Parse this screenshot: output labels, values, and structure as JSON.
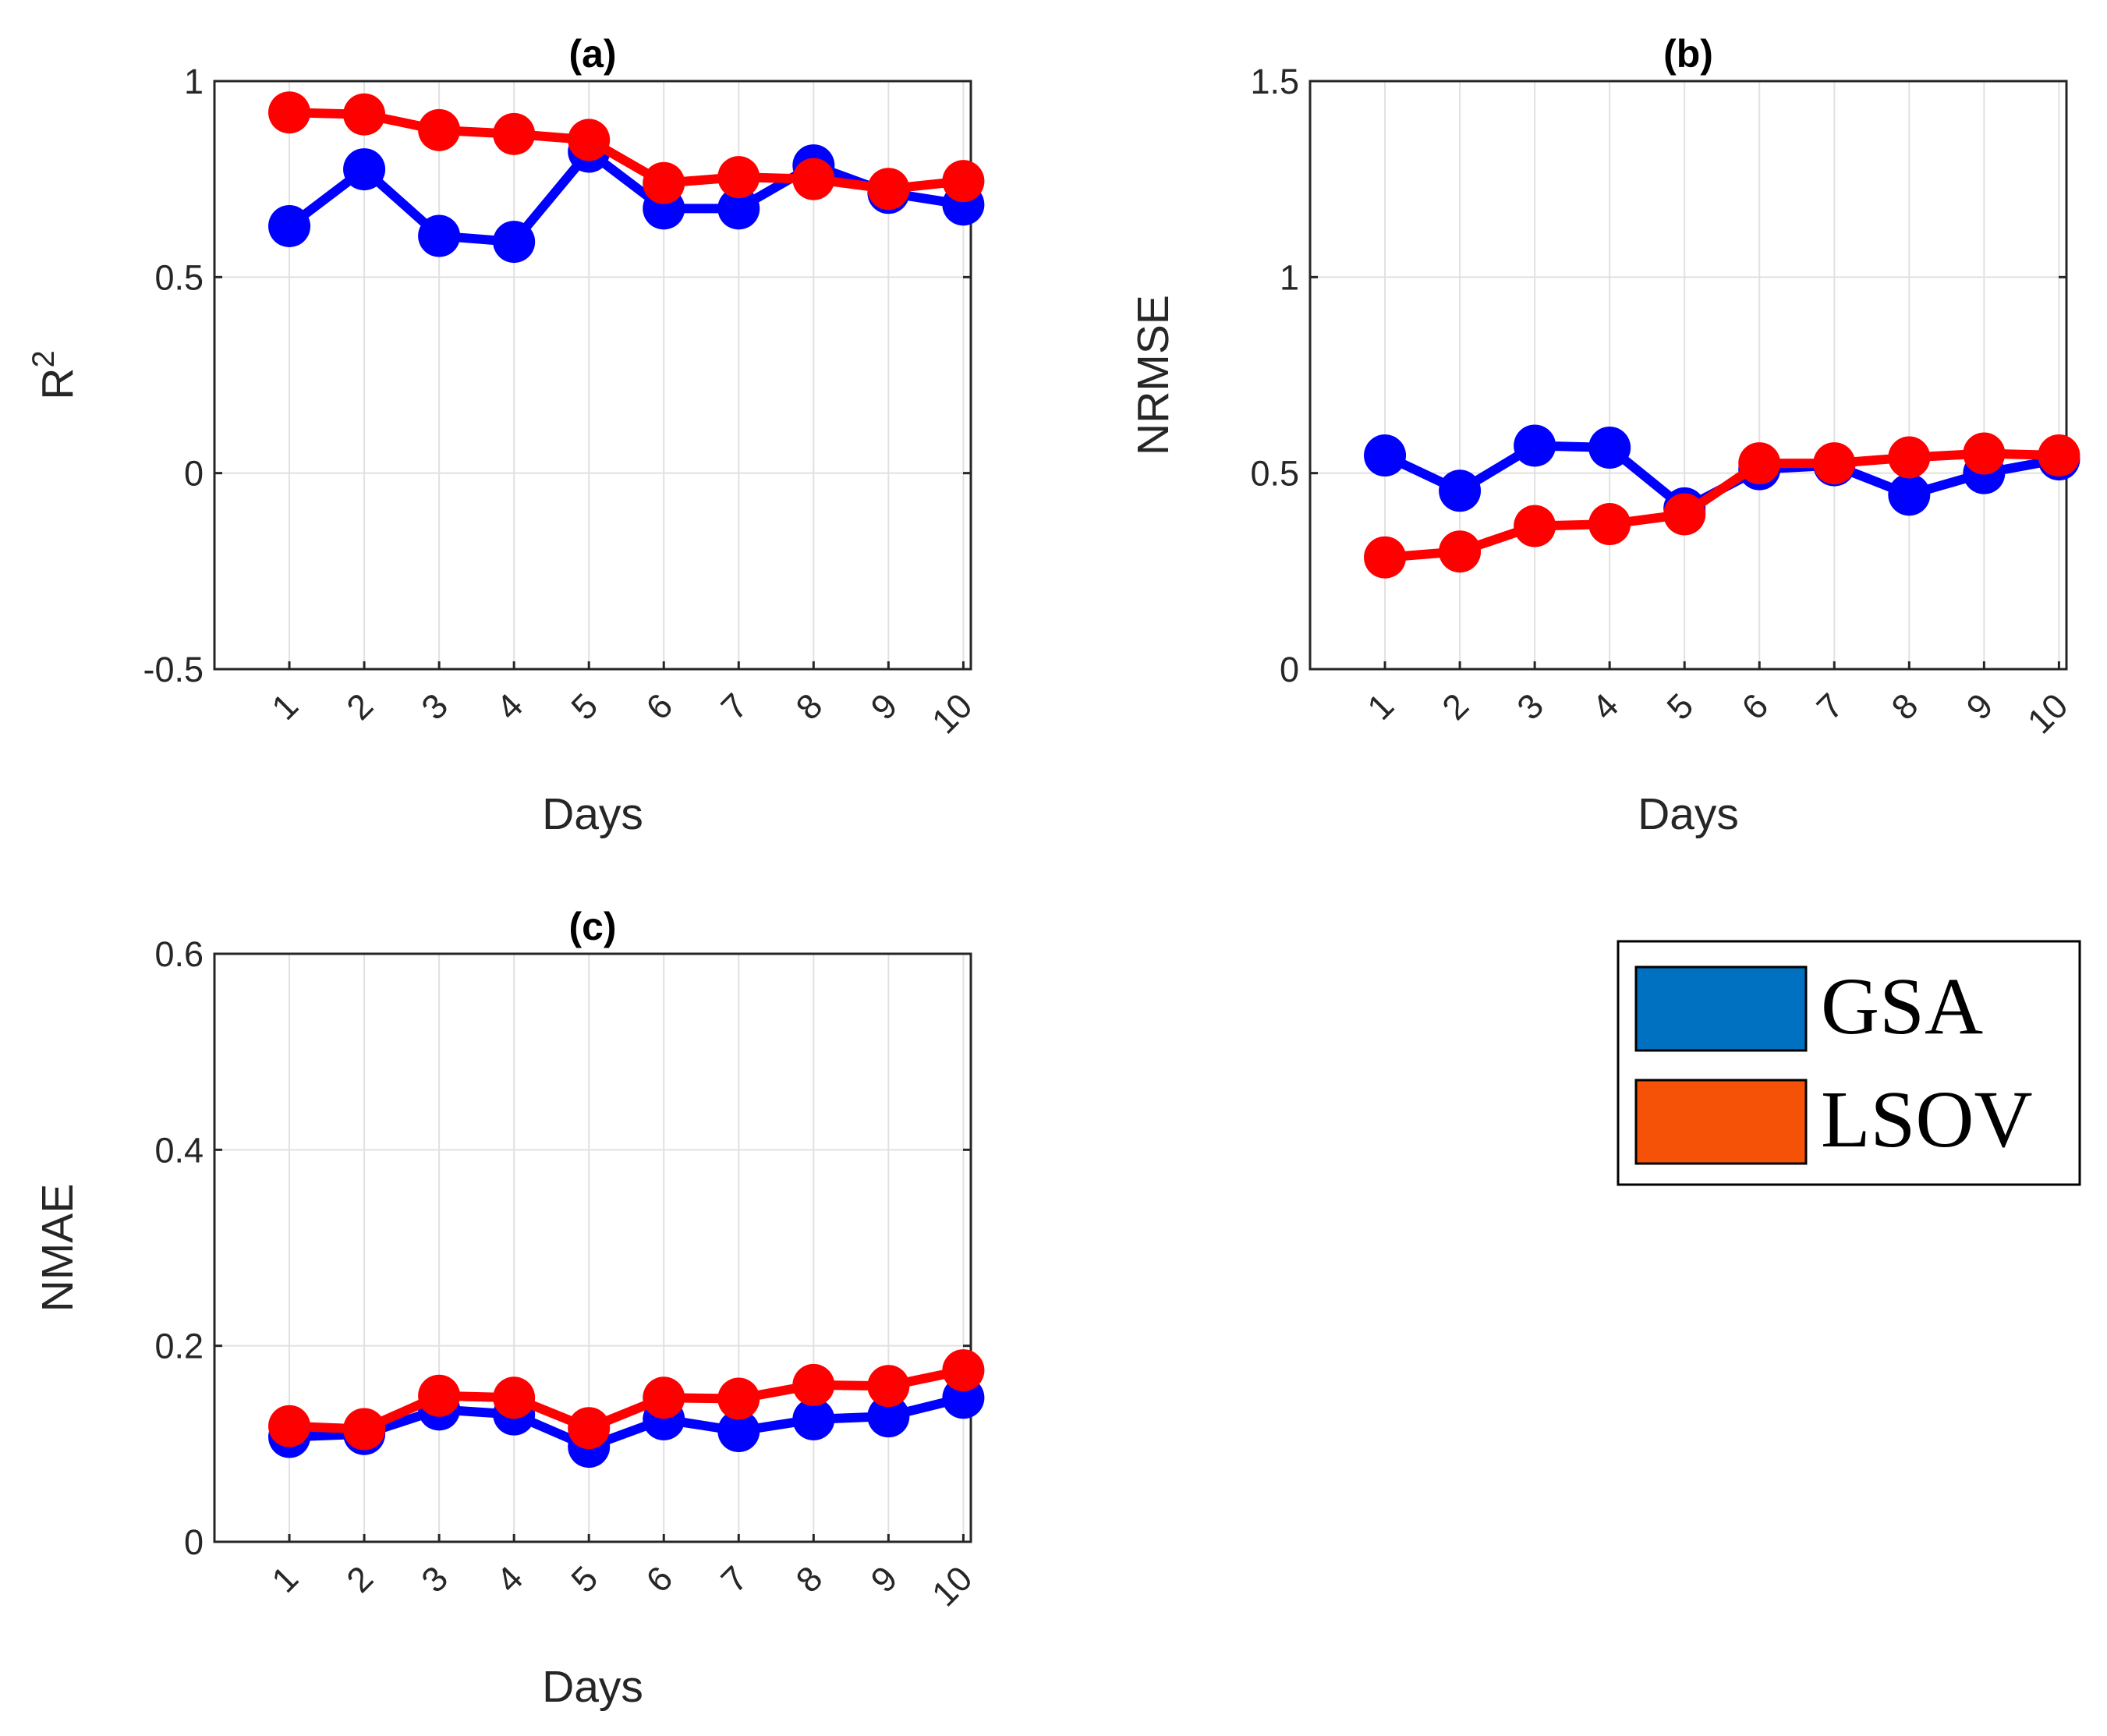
{
  "chart_data": [
    {
      "type": "line",
      "id": "a",
      "title": "(a)",
      "xlabel": "Days",
      "ylabel": "R",
      "ylabel_superscript": "2",
      "ylim": [
        -0.5,
        1
      ],
      "yticks": [
        -0.5,
        0,
        0.5,
        1
      ],
      "ytick_labels": [
        "-0.5",
        "0",
        "0.5",
        "1"
      ],
      "categories": [
        "1",
        "2",
        "3",
        "4",
        "5",
        "6",
        "7",
        "8",
        "9",
        "10"
      ],
      "grid": true,
      "series": [
        {
          "name": "GSA",
          "color": "#0000ff",
          "values": [
            0.63,
            0.775,
            0.605,
            0.59,
            0.82,
            0.675,
            0.675,
            0.785,
            0.715,
            0.685
          ]
        },
        {
          "name": "LSOV",
          "color": "#ff0000",
          "values": [
            0.92,
            0.915,
            0.875,
            0.865,
            0.85,
            0.74,
            0.755,
            0.75,
            0.725,
            0.745
          ]
        }
      ]
    },
    {
      "type": "line",
      "id": "b",
      "title": "(b)",
      "xlabel": "Days",
      "ylabel": "NRMSE",
      "ylim": [
        0,
        1.5
      ],
      "yticks": [
        0,
        0.5,
        1,
        1.5
      ],
      "ytick_labels": [
        "0",
        "0.5",
        "1",
        "1.5"
      ],
      "categories": [
        "1",
        "2",
        "3",
        "4",
        "5",
        "6",
        "7",
        "8",
        "9",
        "10"
      ],
      "grid": true,
      "series": [
        {
          "name": "GSA",
          "color": "#0000ff",
          "values": [
            0.545,
            0.455,
            0.57,
            0.565,
            0.41,
            0.51,
            0.52,
            0.445,
            0.5,
            0.535
          ]
        },
        {
          "name": "LSOV",
          "color": "#ff0000",
          "values": [
            0.285,
            0.3,
            0.365,
            0.37,
            0.395,
            0.525,
            0.525,
            0.54,
            0.55,
            0.545
          ]
        }
      ]
    },
    {
      "type": "line",
      "id": "c",
      "title": "(c)",
      "xlabel": "Days",
      "ylabel": "NMAE",
      "ylim": [
        0,
        0.6
      ],
      "yticks": [
        0,
        0.2,
        0.4,
        0.6
      ],
      "ytick_labels": [
        "0",
        "0.2",
        "0.4",
        "0.6"
      ],
      "categories": [
        "1",
        "2",
        "3",
        "4",
        "5",
        "6",
        "7",
        "8",
        "9",
        "10"
      ],
      "grid": true,
      "series": [
        {
          "name": "GSA",
          "color": "#0000ff",
          "values": [
            0.107,
            0.11,
            0.135,
            0.13,
            0.097,
            0.125,
            0.113,
            0.125,
            0.128,
            0.147
          ]
        },
        {
          "name": "LSOV",
          "color": "#ff0000",
          "values": [
            0.118,
            0.115,
            0.149,
            0.147,
            0.116,
            0.147,
            0.146,
            0.16,
            0.159,
            0.175
          ]
        }
      ]
    }
  ],
  "legend": {
    "placement": "right, beside panel (c)",
    "items": [
      {
        "label": "GSA",
        "color": "#0070c0"
      },
      {
        "label": "LSOV",
        "color": "#f55208"
      }
    ]
  }
}
